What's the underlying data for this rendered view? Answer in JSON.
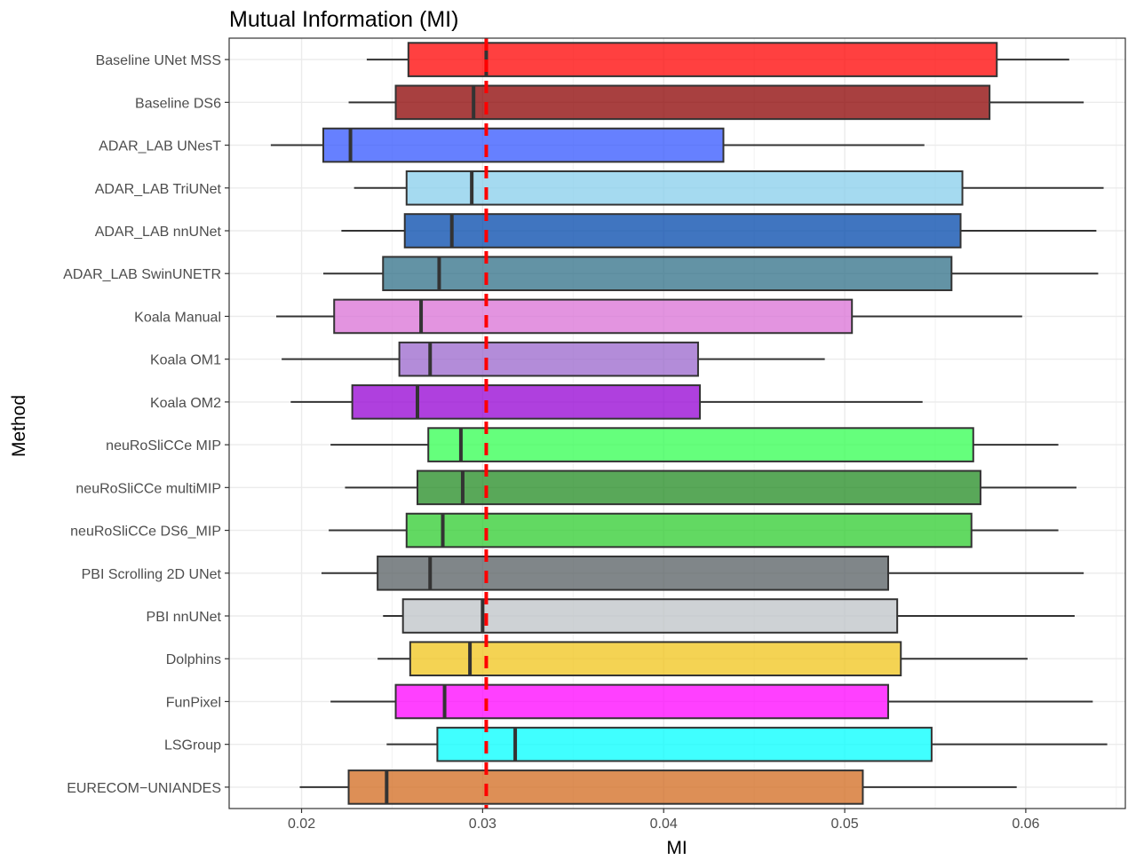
{
  "chart_data": {
    "type": "boxplot",
    "title": "Mutual Information (MI)",
    "xlabel": "MI",
    "ylabel": "Method",
    "xlim": [
      0.016,
      0.0655
    ],
    "x_ticks": [
      0.02,
      0.03,
      0.04,
      0.05,
      0.06
    ],
    "x_tick_labels": [
      "0.02",
      "0.03",
      "0.04",
      "0.05",
      "0.06"
    ],
    "grid": true,
    "reference_line": {
      "value": 0.0302,
      "color": "#ff0000",
      "style": "dashed"
    },
    "categories": [
      "Baseline UNet MSS",
      "Baseline DS6",
      "ADAR_LAB UNesT",
      "ADAR_LAB TriUNet",
      "ADAR_LAB nnUNet",
      "ADAR_LAB SwinUNETR",
      "Koala Manual",
      "Koala OM1",
      "Koala OM2",
      "neuRoSliCCe MIP",
      "neuRoSliCCe multiMIP",
      "neuRoSliCCe DS6_MIP",
      "PBI Scrolling 2D UNet",
      "PBI nnUNet",
      "Dolphins",
      "FunPixel",
      "LSGroup",
      "EURECOM−UNIANDES"
    ],
    "boxes": [
      {
        "whisker_low": 0.0236,
        "q1": 0.0259,
        "median": 0.0302,
        "q3": 0.0584,
        "whisker_high": 0.0624,
        "color": "#ff0000"
      },
      {
        "whisker_low": 0.0226,
        "q1": 0.0252,
        "median": 0.0295,
        "q3": 0.058,
        "whisker_high": 0.0632,
        "color": "#8b0000"
      },
      {
        "whisker_low": 0.0183,
        "q1": 0.0212,
        "median": 0.0227,
        "q3": 0.0433,
        "whisker_high": 0.0544,
        "color": "#3355ff"
      },
      {
        "whisker_low": 0.0229,
        "q1": 0.0258,
        "median": 0.0294,
        "q3": 0.0565,
        "whisker_high": 0.0643,
        "color": "#87ceeb"
      },
      {
        "whisker_low": 0.0222,
        "q1": 0.0257,
        "median": 0.0283,
        "q3": 0.0564,
        "whisker_high": 0.0639,
        "color": "#0047ab"
      },
      {
        "whisker_low": 0.0212,
        "q1": 0.0245,
        "median": 0.0276,
        "q3": 0.0559,
        "whisker_high": 0.064,
        "color": "#2f6f87"
      },
      {
        "whisker_low": 0.0186,
        "q1": 0.0218,
        "median": 0.0266,
        "q3": 0.0504,
        "whisker_high": 0.0598,
        "color": "#da70d6"
      },
      {
        "whisker_low": 0.0189,
        "q1": 0.0254,
        "median": 0.0271,
        "q3": 0.0419,
        "whisker_high": 0.0489,
        "color": "#9966cc"
      },
      {
        "whisker_low": 0.0194,
        "q1": 0.0228,
        "median": 0.0264,
        "q3": 0.042,
        "whisker_high": 0.0543,
        "color": "#9400d3"
      },
      {
        "whisker_low": 0.0216,
        "q1": 0.027,
        "median": 0.0288,
        "q3": 0.0571,
        "whisker_high": 0.0618,
        "color": "#32ff50"
      },
      {
        "whisker_low": 0.0224,
        "q1": 0.0264,
        "median": 0.0289,
        "q3": 0.0575,
        "whisker_high": 0.0628,
        "color": "#228b22"
      },
      {
        "whisker_low": 0.0215,
        "q1": 0.0258,
        "median": 0.0278,
        "q3": 0.057,
        "whisker_high": 0.0618,
        "color": "#2ecc2e"
      },
      {
        "whisker_low": 0.0211,
        "q1": 0.0242,
        "median": 0.0271,
        "q3": 0.0524,
        "whisker_high": 0.0632,
        "color": "#555d62"
      },
      {
        "whisker_low": 0.0245,
        "q1": 0.0256,
        "median": 0.03,
        "q3": 0.0529,
        "whisker_high": 0.0627,
        "color": "#bdc3c7"
      },
      {
        "whisker_low": 0.0242,
        "q1": 0.026,
        "median": 0.0293,
        "q3": 0.0531,
        "whisker_high": 0.0601,
        "color": "#f0c419"
      },
      {
        "whisker_low": 0.0216,
        "q1": 0.0252,
        "median": 0.0279,
        "q3": 0.0524,
        "whisker_high": 0.0637,
        "color": "#ff00ff"
      },
      {
        "whisker_low": 0.0247,
        "q1": 0.0275,
        "median": 0.0318,
        "q3": 0.0548,
        "whisker_high": 0.0645,
        "color": "#00ffff"
      },
      {
        "whisker_low": 0.0199,
        "q1": 0.0226,
        "median": 0.0247,
        "q3": 0.051,
        "whisker_high": 0.0595,
        "color": "#d2691e"
      }
    ]
  }
}
